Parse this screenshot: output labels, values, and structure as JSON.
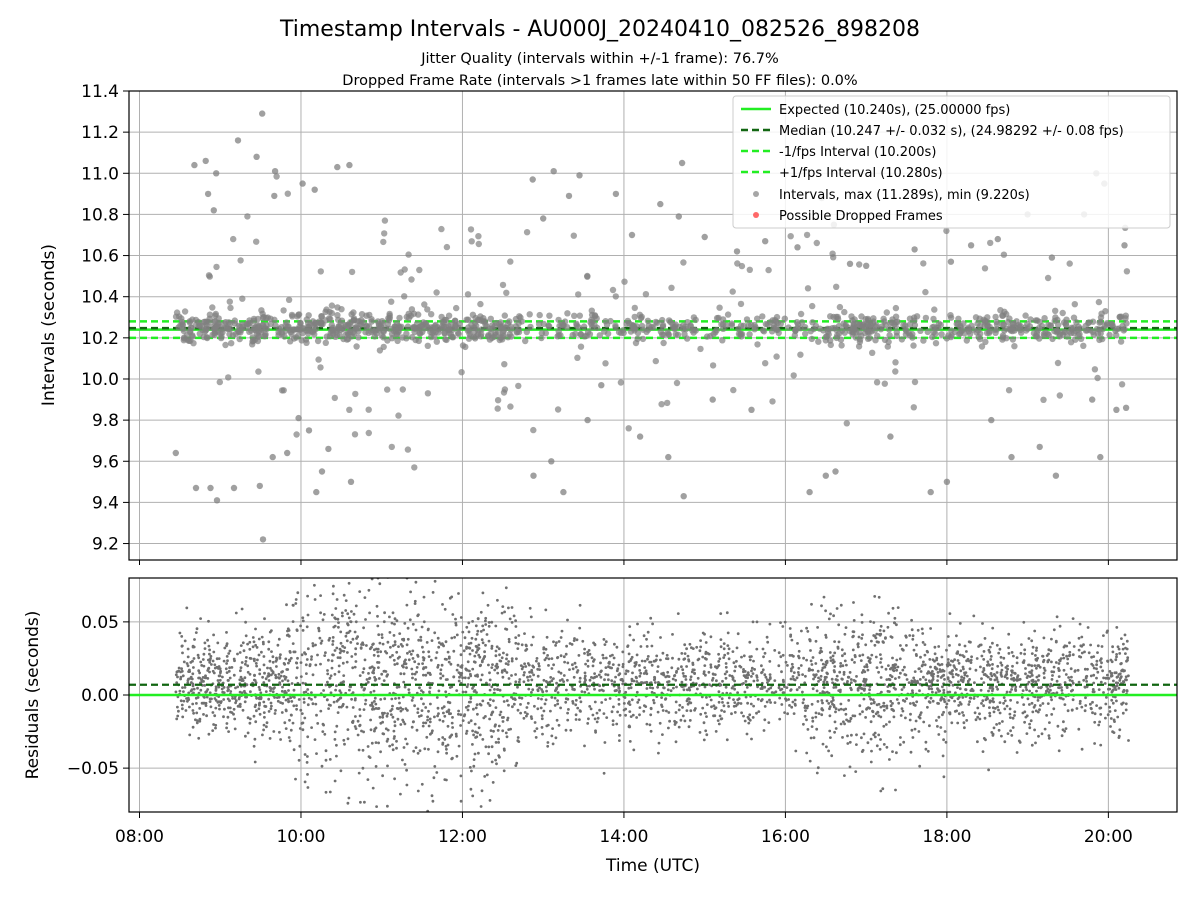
{
  "figure": {
    "title": "Timestamp Intervals - AU000J_20240410_082526_898208",
    "subtitle_1": "Jitter Quality (intervals within +/-1 frame): 76.7%",
    "subtitle_2": "Dropped Frame Rate (intervals >1 frames late within 50 FF files): 0.0%"
  },
  "colors": {
    "expected": "#22ee22",
    "median": "#116611",
    "interval_lines": "#22ee22",
    "points": "#808080",
    "dropped": "#ff4444"
  },
  "chart_data": [
    {
      "type": "scatter",
      "ylabel": "Intervals (seconds)",
      "ylim": [
        9.12,
        11.4
      ],
      "yticks": [
        "9.2",
        "9.4",
        "9.6",
        "9.8",
        "10.0",
        "10.2",
        "10.4",
        "10.6",
        "10.8",
        "11.0",
        "11.2",
        "11.4"
      ],
      "xlim_hours": [
        7.87,
        20.85
      ],
      "xticks": [
        "08:00",
        "10:00",
        "12:00",
        "14:00",
        "16:00",
        "18:00",
        "20:00"
      ],
      "grid": true,
      "legend_position": "top-right",
      "legend": [
        "Expected (10.240s), (25.00000 fps)",
        "Median (10.247 +/- 0.032 s), (24.98292 +/- 0.08 fps)",
        "-1/fps Interval (10.200s)",
        "+1/fps Interval (10.280s)",
        "Intervals, max (11.289s), min (9.220s)",
        "Possible Dropped Frames"
      ],
      "reference_lines": {
        "expected": 10.24,
        "median": 10.247,
        "minus_one_frame": 10.2,
        "plus_one_frame": 10.28
      },
      "series": [
        {
          "name": "Intervals, max (11.289s), min (9.220s)",
          "points": [
            [
              8.45,
              9.64
            ],
            [
              8.68,
              11.04
            ],
            [
              8.7,
              9.47
            ],
            [
              8.82,
              11.06
            ],
            [
              8.85,
              10.9
            ],
            [
              8.88,
              9.47
            ],
            [
              8.92,
              10.82
            ],
            [
              8.95,
              11.0
            ],
            [
              8.96,
              9.41
            ],
            [
              9.17,
              9.47
            ],
            [
              9.22,
              11.16
            ],
            [
              9.45,
              11.08
            ],
            [
              9.49,
              9.48
            ],
            [
              9.52,
              11.29
            ],
            [
              9.53,
              9.22
            ],
            [
              9.65,
              9.62
            ],
            [
              9.67,
              10.89
            ],
            [
              9.68,
              11.01
            ],
            [
              9.83,
              9.64
            ],
            [
              9.97,
              9.81
            ],
            [
              10.02,
              10.95
            ],
            [
              10.1,
              9.75
            ],
            [
              10.17,
              10.92
            ],
            [
              10.19,
              9.45
            ],
            [
              10.26,
              9.55
            ],
            [
              10.34,
              9.66
            ],
            [
              10.45,
              11.03
            ],
            [
              10.6,
              11.04
            ],
            [
              10.62,
              9.5
            ],
            [
              12.87,
              10.97
            ],
            [
              12.88,
              9.53
            ],
            [
              13.0,
              10.78
            ],
            [
              13.1,
              9.6
            ],
            [
              13.13,
              11.01
            ],
            [
              13.25,
              9.45
            ],
            [
              13.32,
              10.89
            ],
            [
              13.45,
              10.99
            ],
            [
              13.55,
              9.8
            ],
            [
              13.72,
              9.97
            ],
            [
              13.9,
              10.9
            ],
            [
              14.1,
              10.7
            ],
            [
              14.2,
              9.72
            ],
            [
              14.45,
              10.85
            ],
            [
              14.55,
              9.62
            ],
            [
              14.68,
              10.79
            ],
            [
              14.72,
              11.05
            ],
            [
              14.74,
              9.43
            ],
            [
              15.0,
              10.69
            ],
            [
              15.1,
              9.9
            ],
            [
              15.4,
              10.62
            ],
            [
              15.58,
              9.85
            ],
            [
              15.75,
              10.67
            ],
            [
              16.15,
              10.64
            ],
            [
              16.3,
              9.45
            ],
            [
              16.45,
              10.88
            ],
            [
              16.5,
              9.53
            ],
            [
              16.6,
              10.75
            ],
            [
              16.62,
              9.55
            ],
            [
              16.8,
              10.56
            ],
            [
              17.0,
              10.55
            ],
            [
              17.3,
              9.72
            ],
            [
              17.6,
              10.63
            ],
            [
              17.8,
              9.45
            ],
            [
              18.0,
              9.5
            ],
            [
              18.05,
              10.57
            ],
            [
              18.3,
              10.65
            ],
            [
              18.55,
              9.8
            ],
            [
              18.63,
              10.68
            ],
            [
              18.8,
              9.62
            ],
            [
              19.0,
              10.8
            ],
            [
              19.15,
              9.67
            ],
            [
              19.3,
              10.59
            ],
            [
              19.35,
              9.53
            ],
            [
              19.7,
              10.8
            ],
            [
              19.8,
              9.9
            ],
            [
              19.85,
              11.0
            ],
            [
              19.9,
              9.62
            ],
            [
              19.95,
              10.95
            ],
            [
              20.1,
              9.85
            ],
            [
              20.2,
              10.65
            ],
            [
              20.22,
              9.86
            ]
          ]
        },
        {
          "name": "Possible Dropped Frames",
          "points": []
        }
      ]
    },
    {
      "type": "scatter",
      "ylabel": "Residuals (seconds)",
      "xlabel": "Time (UTC)",
      "ylim": [
        -0.08,
        0.08
      ],
      "yticks": [
        "−0.05",
        "0.00",
        "0.05"
      ],
      "xlim_hours": [
        7.87,
        20.85
      ],
      "xticks": [
        "08:00",
        "10:00",
        "12:00",
        "14:00",
        "16:00",
        "18:00",
        "20:00"
      ],
      "grid": true,
      "reference_lines": {
        "zero": 0.0,
        "median_offset": 0.007
      }
    }
  ]
}
